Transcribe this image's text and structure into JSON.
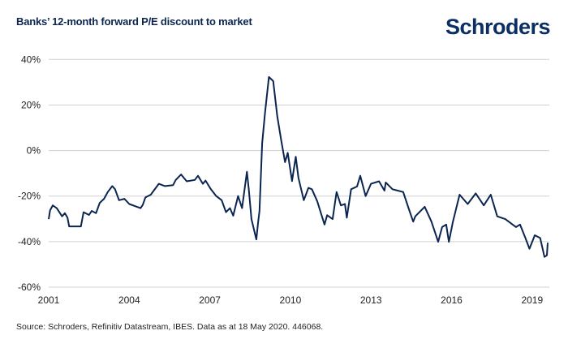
{
  "header": {
    "title": "Banks’ 12-month forward P/E discount to market",
    "logo": "Schroders"
  },
  "footer": {
    "source": "Source: Schroders, Refinitiv Datastream, IBES. Data as at 18 May 2020. 446068."
  },
  "colors": {
    "line": "#0b2551",
    "grid": "#d0d0d0",
    "brand": "#0b2e63"
  },
  "chart_data": {
    "type": "line",
    "title": "Banks’ 12-month forward P/E discount to market",
    "xlabel": "",
    "ylabel": "",
    "ylim": [
      -60,
      40
    ],
    "xlim": [
      2001,
      2019.6
    ],
    "grid": "horizontal",
    "y_ticks": [
      40,
      20,
      0,
      -20,
      -40,
      -60
    ],
    "y_tick_labels": [
      "40%",
      "20%",
      "0%",
      "-20%",
      "-40%",
      "-60%"
    ],
    "x_ticks": [
      2001,
      2004,
      2007,
      2010,
      2013,
      2016,
      2019
    ],
    "x_tick_labels": [
      "2001",
      "2004",
      "2007",
      "2010",
      "2013",
      "2016",
      "2019"
    ],
    "series": [
      {
        "x": [
          2001.0,
          2001.05,
          2001.15,
          2001.3,
          2001.5,
          2001.6,
          2001.7,
          2001.76,
          2002.2,
          2002.3,
          2002.5,
          2002.6,
          2002.76,
          2002.9,
          2003.06,
          2003.2,
          2003.37,
          2003.47,
          2003.62,
          2003.82,
          2004.0,
          2004.42,
          2004.5,
          2004.6,
          2004.8,
          2005.1,
          2005.33,
          2005.63,
          2005.73,
          2005.93,
          2006.14,
          2006.44,
          2006.56,
          2006.74,
          2006.84,
          2007.04,
          2007.24,
          2007.44,
          2007.6,
          2007.75,
          2007.87,
          2008.05,
          2008.2,
          2008.38,
          2008.45,
          2008.55,
          2008.73,
          2008.8,
          2008.85,
          2008.95,
          2009.05,
          2009.2,
          2009.36,
          2009.51,
          2009.66,
          2009.8,
          2009.9,
          2010.06,
          2010.2,
          2010.3,
          2010.5,
          2010.67,
          2010.8,
          2011.0,
          2011.27,
          2011.37,
          2011.57,
          2011.72,
          2011.88,
          2012.03,
          2012.1,
          2012.26,
          2012.48,
          2012.6,
          2012.8,
          2013.0,
          2013.3,
          2013.5,
          2013.55,
          2013.8,
          2014.0,
          2014.2,
          2014.4,
          2014.57,
          2014.65,
          2015.0,
          2015.25,
          2015.5,
          2015.65,
          2015.8,
          2015.9,
          2016.05,
          2016.3,
          2016.6,
          2016.9,
          2017.2,
          2017.46,
          2017.7,
          2018.0,
          2018.4,
          2018.55,
          2018.75,
          2018.9,
          2019.1,
          2019.3,
          2019.46,
          2019.55,
          2019.58
        ],
        "values": [
          -30.1,
          -26.3,
          -24.1,
          -25.3,
          -28.9,
          -27.5,
          -29.5,
          -33.3,
          -33.3,
          -27.1,
          -28.3,
          -26.5,
          -27.5,
          -23.0,
          -21.2,
          -18.2,
          -15.6,
          -17.0,
          -21.8,
          -21.2,
          -23.5,
          -25.3,
          -23.9,
          -20.6,
          -19.4,
          -14.6,
          -15.6,
          -15.2,
          -12.9,
          -10.5,
          -13.5,
          -12.9,
          -11.1,
          -14.6,
          -13.2,
          -17.0,
          -20.0,
          -21.8,
          -27.1,
          -25.3,
          -28.6,
          -20.0,
          -25.3,
          -9.3,
          -17.0,
          -30.1,
          -39.0,
          -31.2,
          -26.5,
          3.2,
          16.2,
          32.3,
          30.5,
          15.1,
          4.4,
          -5.1,
          -1.0,
          -13.4,
          -2.7,
          -12.0,
          -21.8,
          -16.4,
          -17.0,
          -22.3,
          -32.5,
          -28.4,
          -30.1,
          -18.2,
          -24.1,
          -23.5,
          -29.5,
          -17.0,
          -15.8,
          -11.1,
          -20.0,
          -14.6,
          -13.5,
          -17.6,
          -14.0,
          -17.0,
          -17.6,
          -18.2,
          -25.3,
          -31.2,
          -28.9,
          -24.7,
          -31.2,
          -40.1,
          -33.6,
          -32.5,
          -40.1,
          -31.2,
          -19.4,
          -23.5,
          -18.8,
          -24.1,
          -19.4,
          -28.9,
          -30.1,
          -33.6,
          -32.5,
          -38.4,
          -43.1,
          -37.2,
          -38.4,
          -46.7,
          -46.0,
          -40.5
        ]
      }
    ]
  }
}
